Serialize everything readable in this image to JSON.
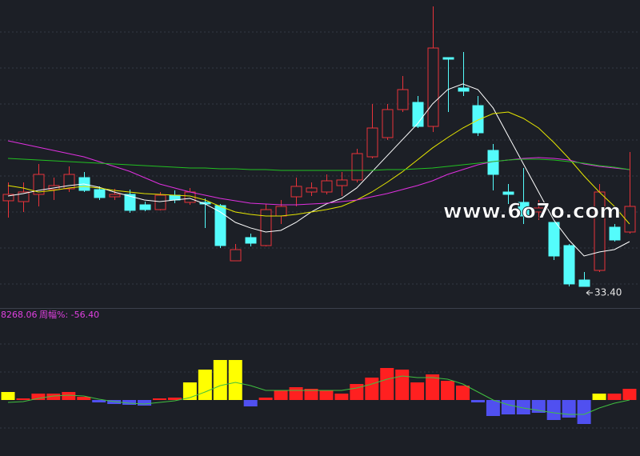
{
  "chart_data": [
    {
      "type": "candlestick",
      "up_color": "#e8333a",
      "down_color": "#54fcfc",
      "ylim": [
        30.025,
        78.15
      ],
      "open": [
        46.78,
        46.65,
        47.78,
        48.53,
        48.65,
        50.4,
        48.53,
        47.4,
        47.78,
        46.15,
        45.4,
        47.65,
        46.53,
        46.53,
        46.03,
        37.4,
        41.03,
        39.78,
        44.4,
        47.4,
        48.15,
        48.15,
        49.15,
        50.03,
        53.65,
        56.65,
        61.03,
        62.15,
        58.4,
        69.15,
        64.4,
        61.65,
        54.65,
        48.15,
        46.53,
        45.03,
        43.4,
        39.78,
        34.4,
        35.9,
        42.65,
        41.9
      ],
      "close": [
        47.78,
        48.15,
        50.9,
        49.15,
        50.9,
        48.4,
        47.28,
        47.78,
        45.28,
        45.4,
        47.65,
        46.9,
        48.15,
        46.28,
        39.78,
        39.15,
        40.15,
        45.4,
        45.9,
        49.03,
        48.78,
        49.9,
        50.03,
        54.15,
        58.15,
        61.03,
        64.15,
        58.4,
        70.65,
        68.9,
        63.9,
        57.4,
        50.9,
        47.78,
        44.4,
        45.65,
        38.15,
        33.78,
        33.4,
        48.15,
        40.65,
        45.9
      ],
      "high": [
        49.65,
        49.65,
        52.53,
        50.4,
        52.15,
        51.28,
        49.03,
        48.65,
        48.53,
        46.65,
        48.15,
        48.4,
        48.78,
        47.15,
        46.28,
        40.03,
        41.65,
        46.28,
        46.9,
        50.4,
        49.65,
        50.9,
        51.28,
        54.9,
        61.9,
        61.9,
        66.28,
        63.15,
        77.15,
        69.15,
        70.03,
        63.15,
        55.65,
        49.4,
        51.9,
        46.9,
        43.4,
        40.03,
        35.65,
        49.4,
        43.15,
        54.4
      ],
      "low": [
        44.15,
        45.03,
        45.9,
        46.9,
        48.15,
        48.15,
        46.9,
        46.9,
        44.9,
        45.15,
        45.28,
        46.4,
        46.15,
        42.53,
        39.4,
        37.4,
        39.65,
        39.65,
        43.15,
        45.9,
        47.53,
        47.78,
        47.53,
        49.65,
        53.4,
        56.28,
        60.65,
        58.15,
        57.53,
        60.65,
        63.15,
        56.9,
        48.4,
        46.28,
        43.15,
        43.78,
        37.53,
        33.4,
        33.4,
        35.65,
        40.4,
        41.65
      ],
      "series": [
        {
          "color": "#ffffff",
          "values": [
            47.53,
            47.9,
            48.4,
            48.78,
            49.15,
            49.4,
            48.9,
            48.15,
            47.53,
            46.9,
            46.65,
            46.9,
            47.15,
            46.28,
            45.03,
            43.4,
            42.53,
            41.9,
            42.15,
            43.4,
            45.03,
            46.28,
            47.15,
            48.78,
            51.28,
            53.78,
            56.28,
            58.78,
            61.9,
            64.15,
            65.03,
            64.15,
            61.28,
            56.9,
            52.53,
            48.15,
            43.78,
            40.65,
            38.15,
            38.78,
            39.15,
            40.4
          ]
        },
        {
          "color": "#e6e600",
          "values": [
            49.15,
            48.78,
            48.15,
            48.4,
            48.78,
            49.03,
            48.78,
            48.4,
            48.15,
            47.9,
            47.78,
            47.65,
            47.53,
            46.9,
            45.9,
            45.03,
            44.65,
            44.4,
            44.4,
            44.65,
            45.03,
            45.4,
            45.9,
            46.9,
            48.15,
            49.65,
            51.28,
            53.15,
            55.03,
            56.65,
            58.15,
            59.4,
            60.4,
            60.65,
            59.65,
            58.15,
            55.9,
            53.4,
            50.65,
            48.15,
            45.9,
            43.15
          ]
        },
        {
          "color": "#e030e0",
          "values": [
            56.15,
            55.65,
            55.15,
            54.65,
            54.15,
            53.65,
            52.9,
            52.15,
            51.4,
            50.4,
            49.4,
            48.78,
            48.15,
            47.65,
            47.15,
            46.78,
            46.4,
            46.28,
            46.15,
            46.15,
            46.28,
            46.4,
            46.65,
            46.9,
            47.4,
            47.9,
            48.53,
            49.15,
            49.9,
            50.9,
            51.65,
            52.4,
            52.9,
            53.15,
            53.4,
            53.53,
            53.4,
            53.15,
            52.53,
            52.15,
            51.9,
            51.65
          ]
        },
        {
          "color": "#22c022",
          "values": [
            53.4,
            53.28,
            53.15,
            53.03,
            52.9,
            52.78,
            52.65,
            52.53,
            52.4,
            52.28,
            52.15,
            52.03,
            51.9,
            51.9,
            51.78,
            51.78,
            51.65,
            51.65,
            51.53,
            51.53,
            51.53,
            51.53,
            51.53,
            51.53,
            51.53,
            51.65,
            51.65,
            51.78,
            51.9,
            52.15,
            52.4,
            52.65,
            52.9,
            53.15,
            53.28,
            53.28,
            53.15,
            52.9,
            52.65,
            52.28,
            52.03,
            51.65
          ]
        }
      ],
      "annotation": "33.40",
      "watermark": "www.6o7o.com"
    },
    {
      "type": "bar",
      "title": "8268.06",
      "subtitle": "周幅%: -56.40",
      "ylim": [
        -70,
        113
      ],
      "values": [
        10,
        2,
        8,
        8,
        10,
        4,
        -3,
        -5,
        -6,
        -7,
        2,
        3,
        22,
        38,
        50,
        50,
        -8,
        3,
        12,
        16,
        14,
        12,
        8,
        20,
        28,
        40,
        38,
        22,
        32,
        24,
        18,
        -3,
        -20,
        -18,
        -18,
        -16,
        -25,
        -22,
        -30,
        8,
        8,
        14
      ],
      "colors": [
        "#ffff00",
        "#ff2020",
        "#ff2020",
        "#ff2020",
        "#ff2020",
        "#ff2020",
        "#5050f0",
        "#5050f0",
        "#5050f0",
        "#5050f0",
        "#ff2020",
        "#ff2020",
        "#ffff00",
        "#ffff00",
        "#ffff00",
        "#ffff00",
        "#5050f0",
        "#ff2020",
        "#ff2020",
        "#ff2020",
        "#ff2020",
        "#ff2020",
        "#ff2020",
        "#ff2020",
        "#ff2020",
        "#ff2020",
        "#ff2020",
        "#ff2020",
        "#ff2020",
        "#ff2020",
        "#ff2020",
        "#5050f0",
        "#5050f0",
        "#5050f0",
        "#5050f0",
        "#5050f0",
        "#5050f0",
        "#5050f0",
        "#5050f0",
        "#ffff00",
        "#ff2020",
        "#ff2020"
      ],
      "series": [
        {
          "color": "#40c040",
          "values": [
            -3,
            -2,
            2,
            5,
            6,
            5,
            1,
            -2,
            -4,
            -5,
            -3,
            -1,
            3,
            10,
            18,
            22,
            18,
            12,
            12,
            12,
            12,
            12,
            12,
            15,
            20,
            26,
            30,
            28,
            28,
            26,
            20,
            10,
            0,
            -6,
            -10,
            -13,
            -16,
            -18,
            -18,
            -10,
            -4,
            0
          ]
        }
      ]
    }
  ]
}
